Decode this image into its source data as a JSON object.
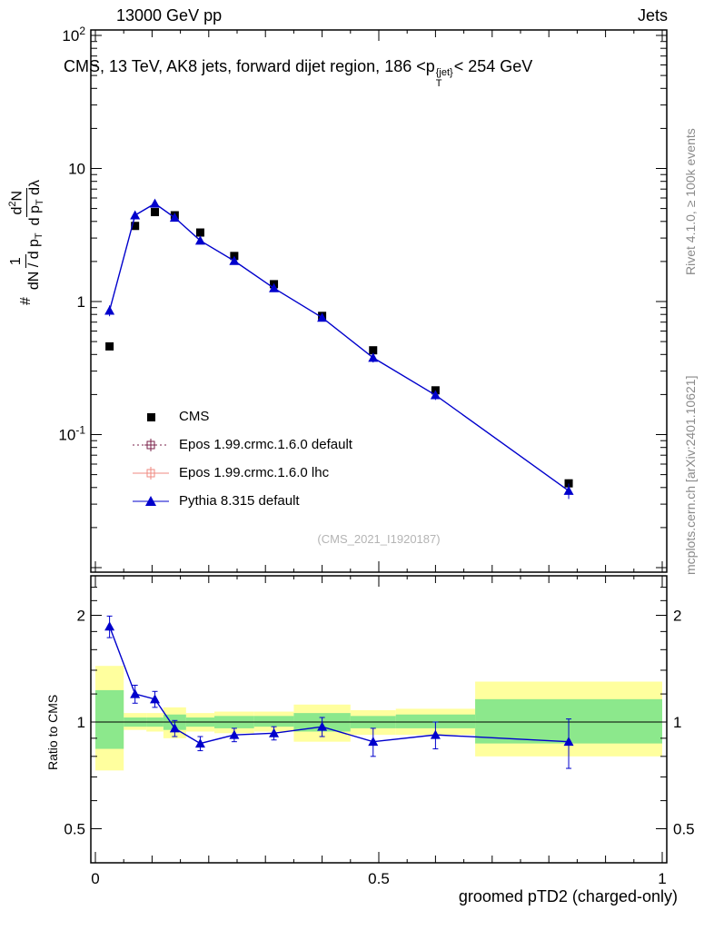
{
  "header": {
    "left": "13000 GeV pp",
    "right": "Jets"
  },
  "plot_title": {
    "a": "CMS, 13 TeV, AK8 jets, forward dijet region, 186 <p",
    "sup": "{jet}",
    "sub": "T",
    "b": "< 254 GeV"
  },
  "watermark": "(CMS_2021_I1920187)",
  "side_notes": {
    "top": "Rivet 4.1.0, ≥ 100k events",
    "bottom": "mcplots.cern.ch [arXiv:2401.10621]"
  },
  "axis_labels": {
    "y_main": {
      "prefix": "#",
      "f1_num": "1",
      "f1_den_a": "dN / d p",
      "f1_den_sub": "T",
      "f2_num_a": "d",
      "f2_num_sup": "2",
      "f2_num_b": "N",
      "f2_den_a": "d p",
      "f2_den_sub": "T",
      "f2_den_b": " dλ"
    },
    "y_ratio": "Ratio to CMS",
    "x": "groomed pTD2 (charged-only)"
  },
  "colors": {
    "cms": "#000000",
    "epos_default": "#7a2048",
    "epos_lhc": "#ef8a80",
    "pythia": "#0000cc",
    "band_yellow": "#ffff9e",
    "band_green": "#8ce88c"
  },
  "legend": {
    "items": [
      {
        "label": "CMS",
        "color": "#000000",
        "marker": "filled-square",
        "line": "none"
      },
      {
        "label": "Epos 1.99.crmc.1.6.0 default",
        "color": "#7a2048",
        "marker": "open-cross-square",
        "line": "dotted"
      },
      {
        "label": "Epos 1.99.crmc.1.6.0 lhc",
        "color": "#ef8a80",
        "marker": "open-cross-square",
        "line": "solid"
      },
      {
        "label": "Pythia 8.315 default",
        "color": "#0000cc",
        "marker": "filled-triangle",
        "line": "solid"
      }
    ]
  },
  "chart_data": {
    "type": "line",
    "title": "CMS, 13 TeV, AK8 jets, forward dijet region, 186 <pT{jet}< 254 GeV",
    "xlabel": "groomed pTD2 (charged-only)",
    "main_panel": {
      "yscale": "log",
      "ylim": [
        0.009,
        110
      ],
      "xlim": [
        0,
        1
      ],
      "xtick_labels": [
        {
          "v": 0,
          "t": "0"
        },
        {
          "v": 0.5,
          "t": "0.5"
        },
        {
          "v": 1,
          "t": "1"
        }
      ],
      "ytick_labels": [
        {
          "v": 100,
          "base": "10",
          "exp": "2"
        },
        {
          "v": 10,
          "base": "10",
          "exp": ""
        },
        {
          "v": 1,
          "base": "1",
          "exp": ""
        },
        {
          "v": 0.1,
          "base": "10",
          "exp": "-1"
        }
      ],
      "x": [
        0.025,
        0.07,
        0.105,
        0.14,
        0.185,
        0.245,
        0.315,
        0.4,
        0.49,
        0.6,
        0.835
      ],
      "series": [
        {
          "name": "CMS",
          "marker": "square",
          "color": "#000000",
          "line": false,
          "y": [
            0.46,
            3.7,
            4.7,
            4.45,
            3.3,
            2.2,
            1.35,
            0.78,
            0.43,
            0.215,
            0.043
          ],
          "yerr": [
            0.025,
            0.12,
            0.15,
            0.14,
            0.1,
            0.07,
            0.045,
            0.025,
            0.015,
            0.009,
            0.003
          ]
        },
        {
          "name": "Pythia 8.315 default",
          "marker": "triangle",
          "color": "#0000cc",
          "line": true,
          "y": [
            0.855,
            4.45,
            5.45,
            4.27,
            2.87,
            2.02,
            1.26,
            0.757,
            0.378,
            0.198,
            0.0378
          ],
          "yerr": [
            0.08,
            0.15,
            0.17,
            0.14,
            0.09,
            0.07,
            0.04,
            0.03,
            0.03,
            0.016,
            0.005
          ]
        }
      ]
    },
    "ratio_panel": {
      "yscale": "log2",
      "ylim": [
        0.4,
        2.57
      ],
      "ytick_labels": [
        {
          "v": 2,
          "t": "2"
        },
        {
          "v": 1,
          "t": "1"
        },
        {
          "v": 0.5,
          "t": "0.5"
        }
      ],
      "unity": 1,
      "bands": [
        {
          "x0": 0.0,
          "x1": 0.05,
          "yellow": [
            0.73,
            1.44
          ],
          "green": [
            0.84,
            1.23
          ]
        },
        {
          "x0": 0.05,
          "x1": 0.09,
          "yellow": [
            0.95,
            1.06
          ],
          "green": [
            0.97,
            1.03
          ]
        },
        {
          "x0": 0.09,
          "x1": 0.12,
          "yellow": [
            0.94,
            1.06
          ],
          "green": [
            0.97,
            1.03
          ]
        },
        {
          "x0": 0.12,
          "x1": 0.16,
          "yellow": [
            0.9,
            1.1
          ],
          "green": [
            0.95,
            1.05
          ]
        },
        {
          "x0": 0.16,
          "x1": 0.21,
          "yellow": [
            0.94,
            1.06
          ],
          "green": [
            0.97,
            1.03
          ]
        },
        {
          "x0": 0.21,
          "x1": 0.28,
          "yellow": [
            0.93,
            1.07
          ],
          "green": [
            0.96,
            1.04
          ]
        },
        {
          "x0": 0.28,
          "x1": 0.35,
          "yellow": [
            0.94,
            1.07
          ],
          "green": [
            0.97,
            1.04
          ]
        },
        {
          "x0": 0.35,
          "x1": 0.45,
          "yellow": [
            0.88,
            1.12
          ],
          "green": [
            0.94,
            1.06
          ]
        },
        {
          "x0": 0.45,
          "x1": 0.53,
          "yellow": [
            0.92,
            1.08
          ],
          "green": [
            0.96,
            1.04
          ]
        },
        {
          "x0": 0.53,
          "x1": 0.67,
          "yellow": [
            0.92,
            1.09
          ],
          "green": [
            0.96,
            1.05
          ]
        },
        {
          "x0": 0.67,
          "x1": 1.0,
          "yellow": [
            0.8,
            1.3
          ],
          "green": [
            0.87,
            1.16
          ]
        }
      ],
      "series": {
        "name": "Pythia 8.315 default / CMS",
        "color": "#0000cc",
        "marker": "triangle",
        "x": [
          0.025,
          0.07,
          0.105,
          0.14,
          0.185,
          0.245,
          0.315,
          0.4,
          0.49,
          0.6,
          0.835
        ],
        "y": [
          1.86,
          1.2,
          1.16,
          0.96,
          0.87,
          0.92,
          0.93,
          0.97,
          0.88,
          0.92,
          0.88
        ],
        "yerr": [
          0.13,
          0.07,
          0.06,
          0.05,
          0.04,
          0.04,
          0.04,
          0.06,
          0.08,
          0.08,
          0.14
        ]
      }
    }
  }
}
